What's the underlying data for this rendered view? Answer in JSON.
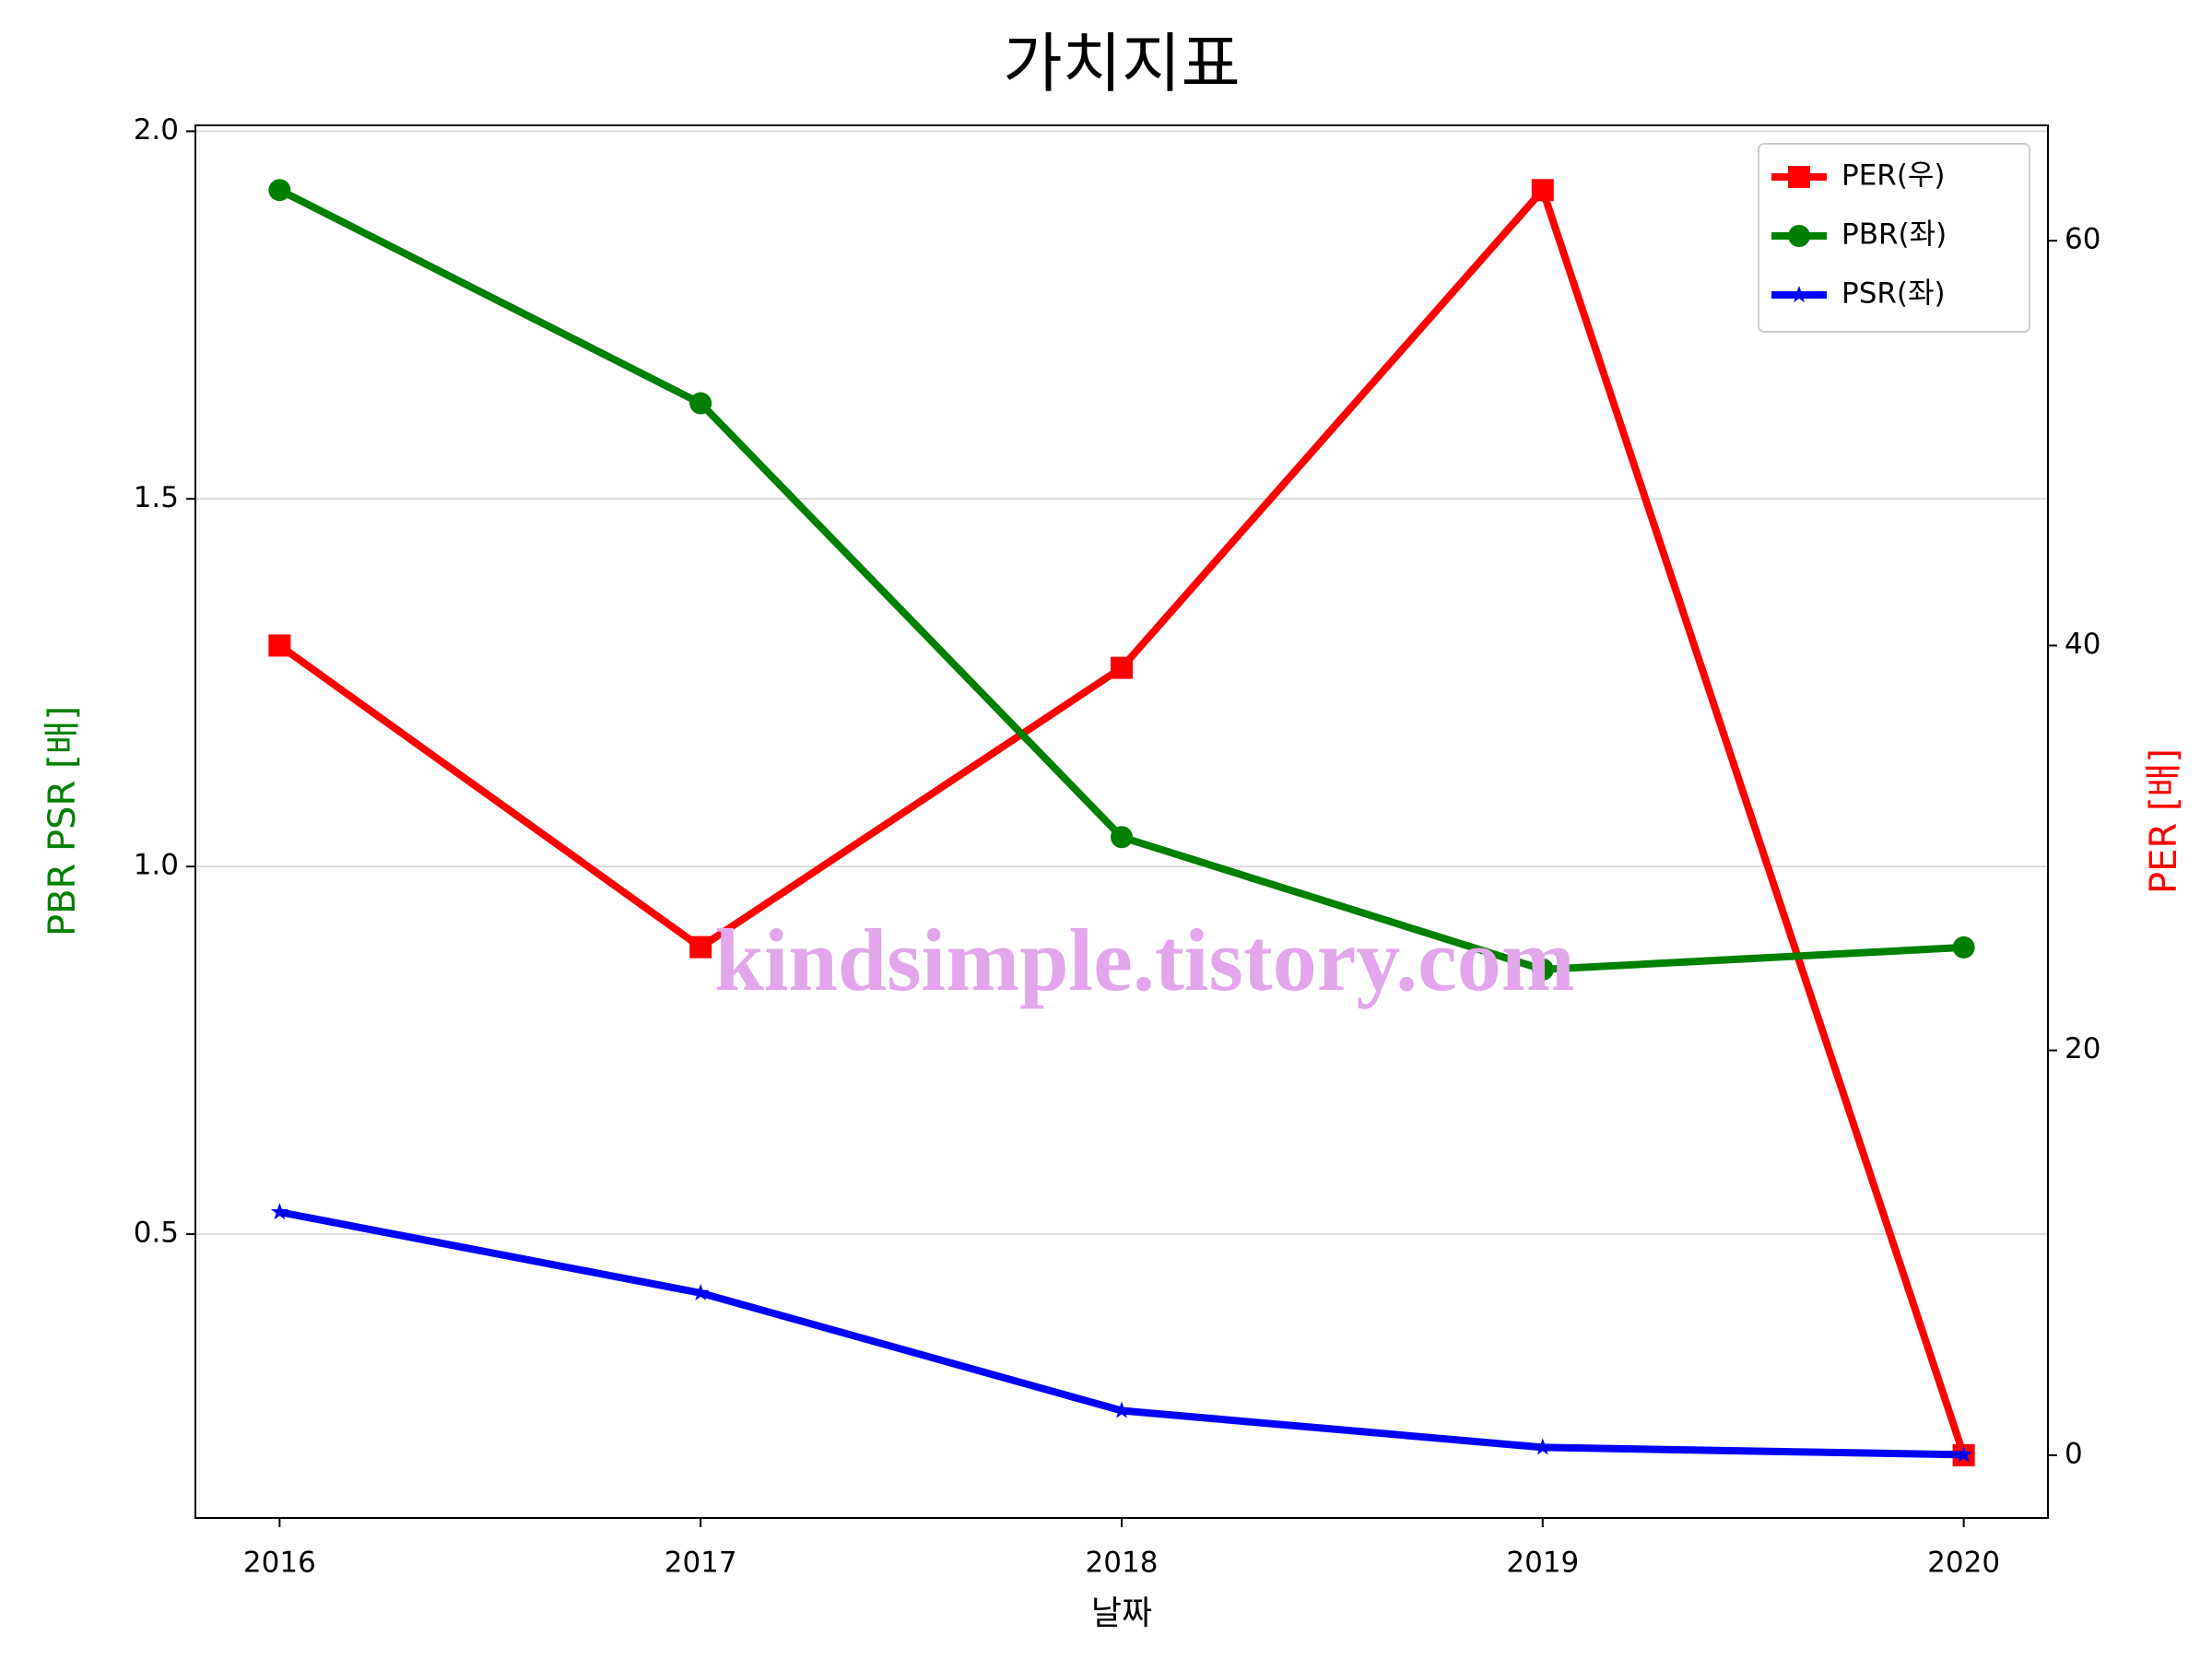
{
  "chart_data": {
    "type": "line",
    "title": "가치지표",
    "x_label": "날짜",
    "y_label": "PBR PSR [배]",
    "y2_label": "PER [배]",
    "x": [
      2016,
      2017,
      2018,
      2019,
      2020
    ],
    "xlim": [
      2015.8,
      2020.2
    ],
    "xticks": [
      2016,
      2017,
      2018,
      2019,
      2020
    ],
    "ylim": [
      0.114,
      2.008
    ],
    "yticks": [
      {
        "value": 0.5,
        "label": "0.5"
      },
      {
        "value": 1.0,
        "label": "1.0"
      },
      {
        "value": 1.5,
        "label": "1.5"
      },
      {
        "value": 2.0,
        "label": "2.0"
      }
    ],
    "y2lim": [
      -3.1,
      65.7
    ],
    "y2ticks": [
      0,
      20,
      40,
      60
    ],
    "grid": true,
    "legend": "upper right",
    "series": [
      {
        "name": "PER(우)",
        "color": "#ff0000",
        "marker": "square",
        "axis": "y2",
        "values": [
          40,
          25.1,
          38.9,
          62.5,
          0
        ]
      },
      {
        "name": "PBR(좌)",
        "color": "#008000",
        "marker": "circle",
        "values": [
          1.92,
          1.63,
          1.04,
          0.86,
          0.89
        ]
      },
      {
        "name": "PSR(좌)",
        "color": "#0000ff",
        "marker": "star",
        "values": [
          0.53,
          0.42,
          0.26,
          0.21,
          0.2
        ]
      }
    ],
    "annotation": "kindsimple.tistory.com"
  }
}
